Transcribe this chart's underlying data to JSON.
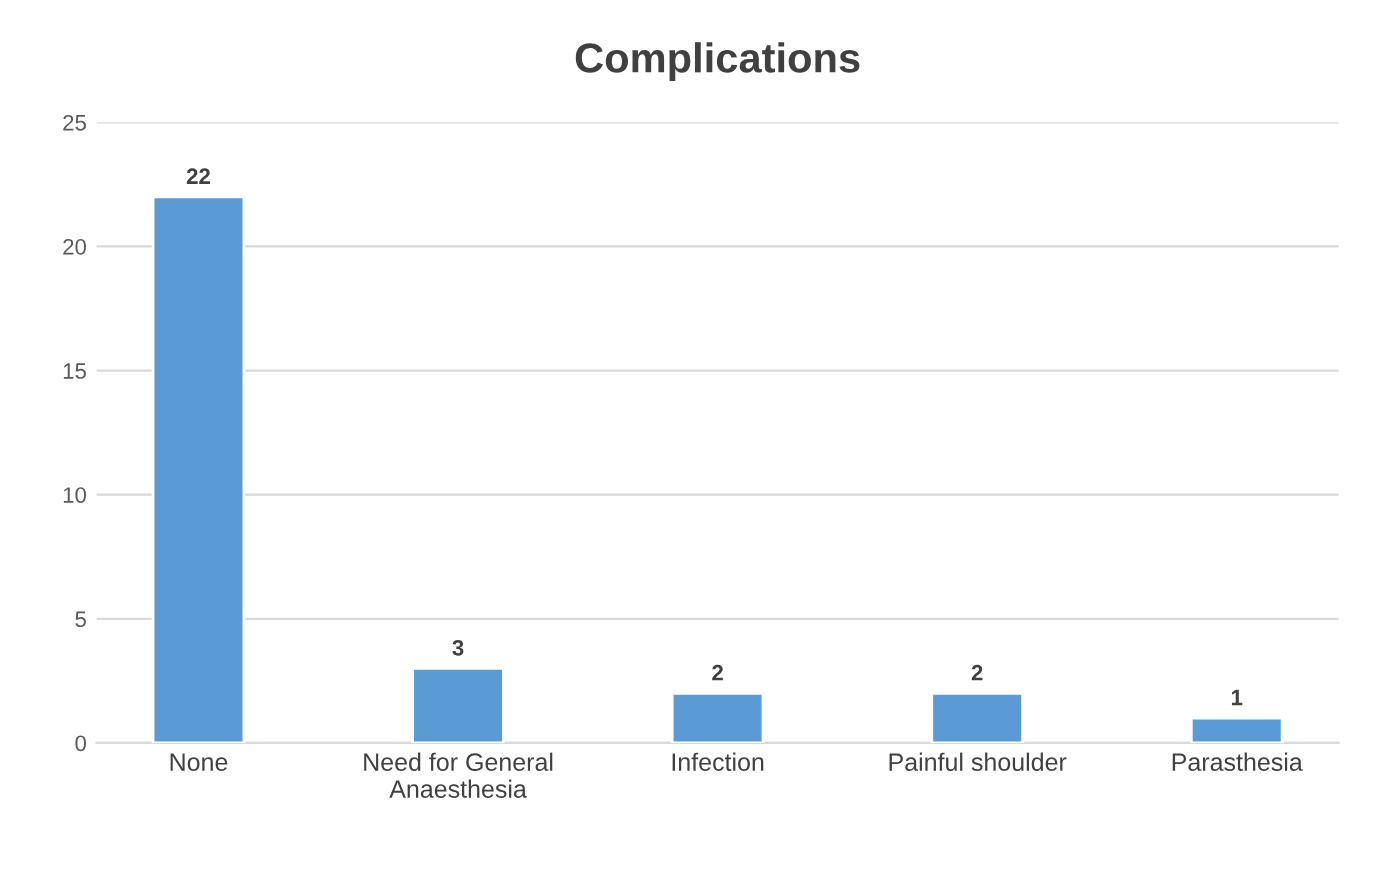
{
  "chart_data": {
    "type": "bar",
    "title": "Complications",
    "categories": [
      "None",
      "Need for General\nAnaesthesia",
      "Infection",
      "Painful shoulder",
      "Parasthesia"
    ],
    "values": [
      22,
      3,
      2,
      2,
      1
    ],
    "color": "#5b9bd5",
    "ylim": [
      0,
      25
    ],
    "yticks": [
      0,
      5,
      10,
      15,
      20,
      25
    ],
    "grid": "y",
    "data_labels": true
  }
}
